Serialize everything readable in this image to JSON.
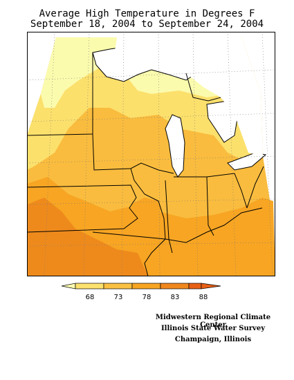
{
  "title": {
    "line1": "Average High Temperature in Degrees F",
    "line2": "September 18, 2004 to September 24, 2004"
  },
  "legend": {
    "ticks": [
      "68",
      "73",
      "78",
      "83",
      "88"
    ],
    "colors": [
      "#fcfcb0",
      "#fce16e",
      "#fbc142",
      "#f7a523",
      "#f0881d",
      "#e86015"
    ]
  },
  "credits": {
    "line1": "Midwestern Regional Climate Center",
    "line2": "Illinois State Water Survey",
    "line3": "Champaign, Illinois"
  }
}
